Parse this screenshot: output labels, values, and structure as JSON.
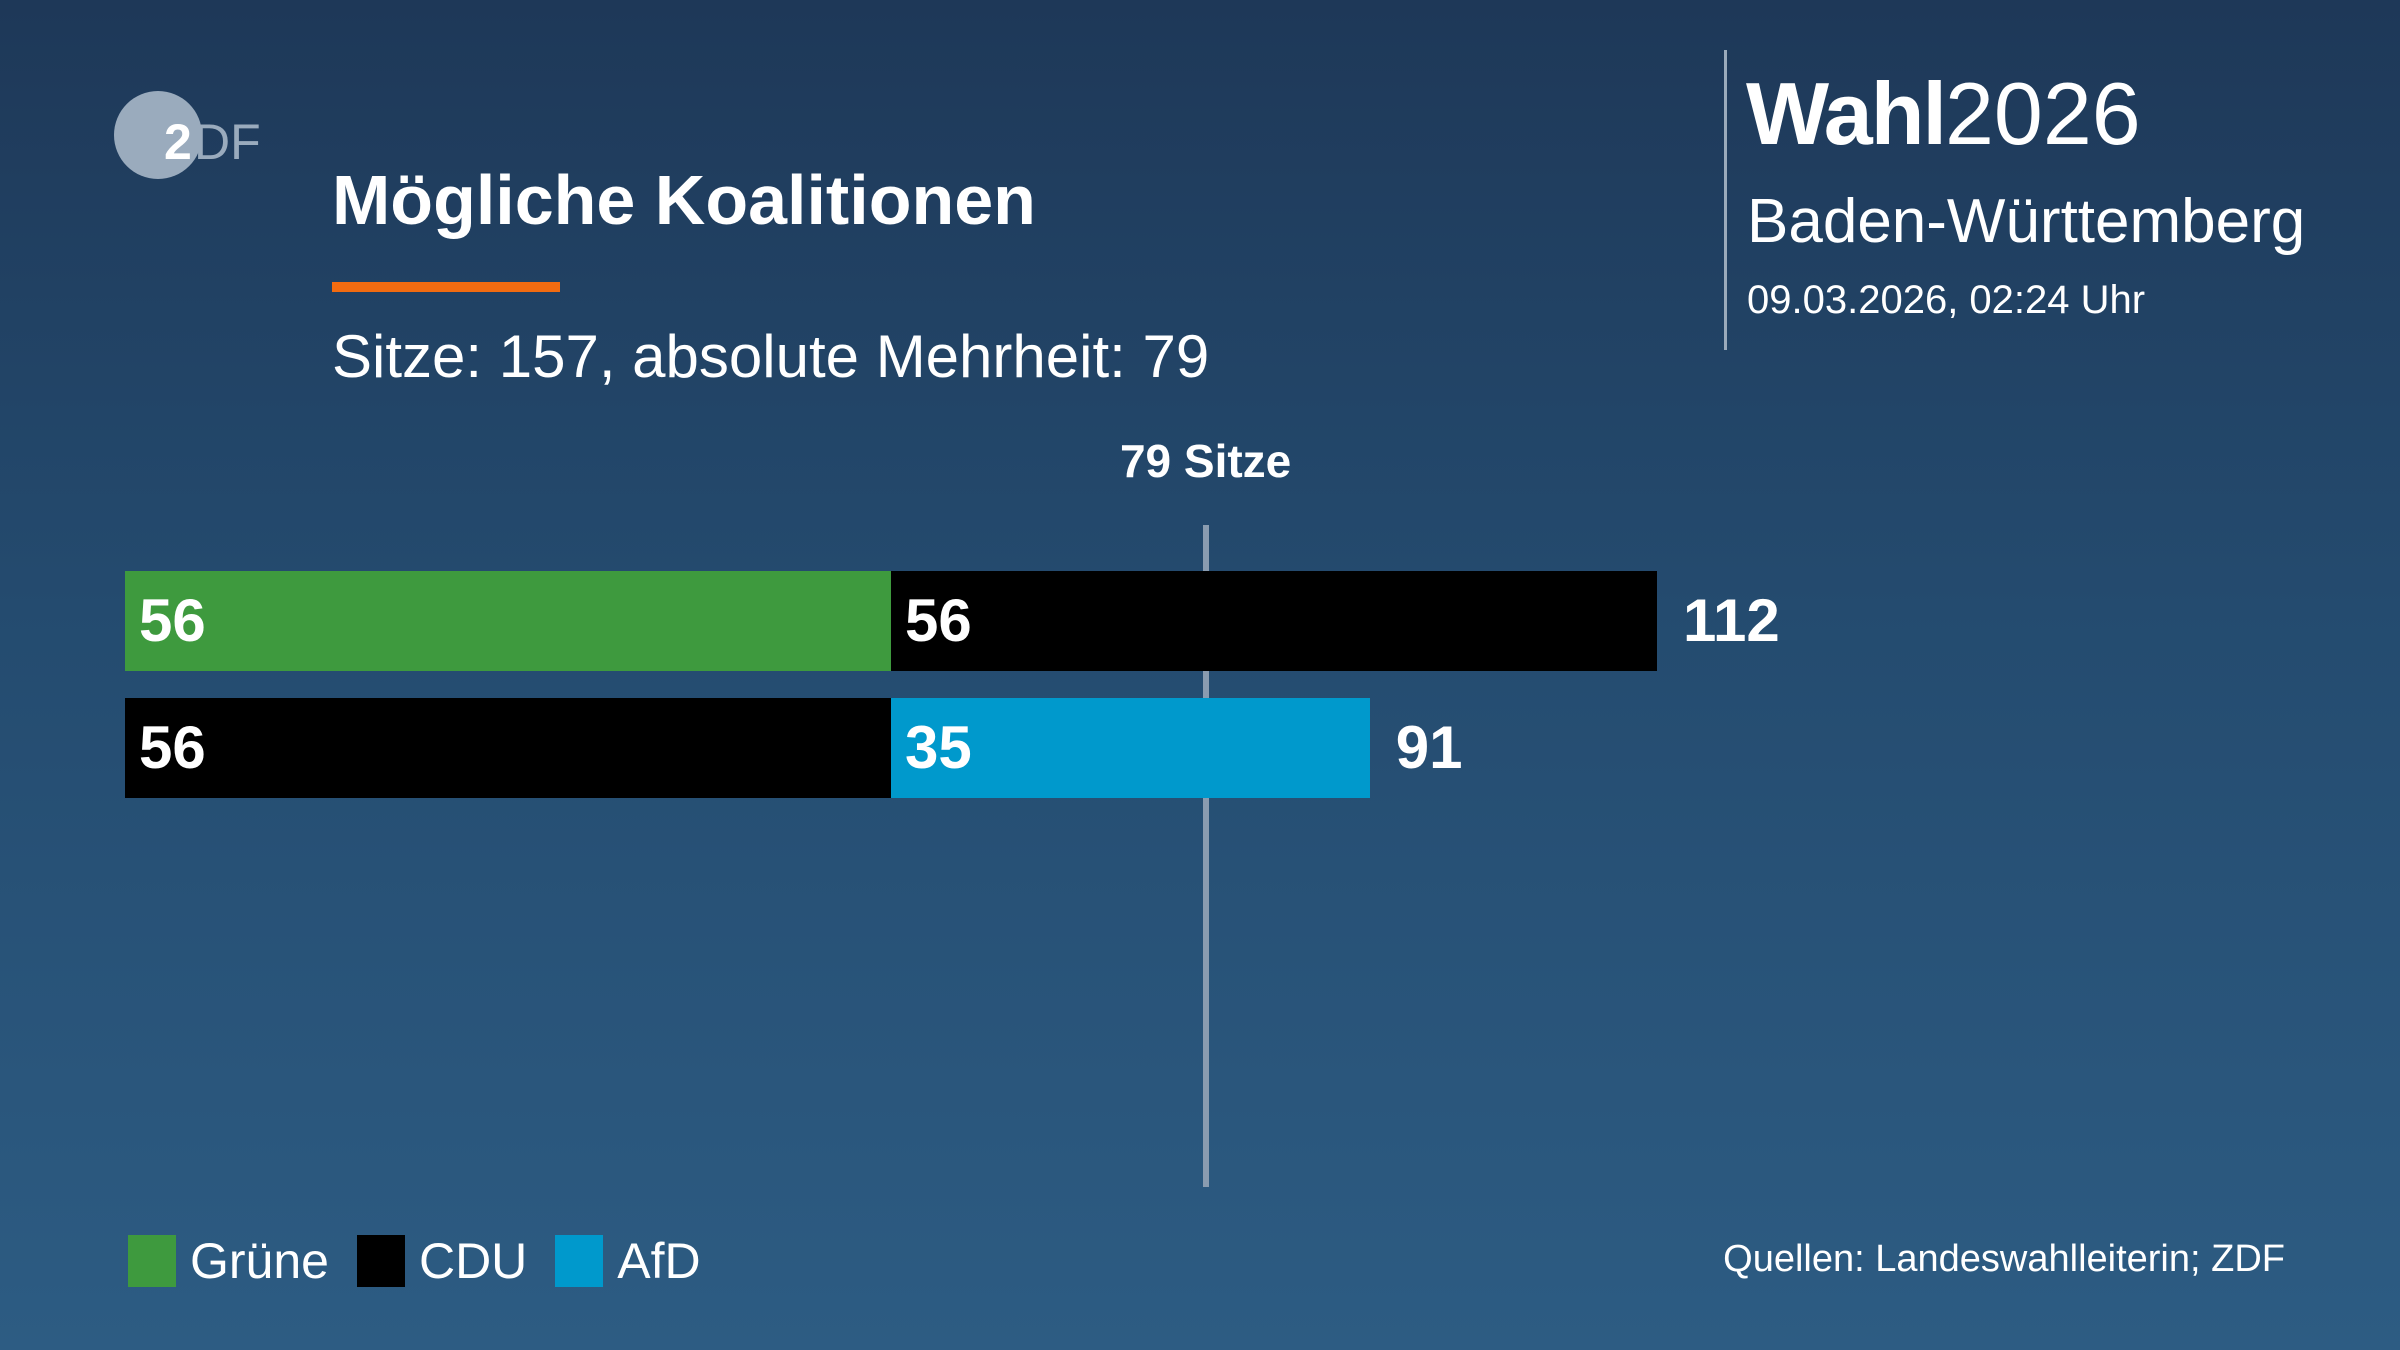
{
  "logo": {
    "text": "ZDF"
  },
  "header": {
    "title": "Mögliche Koalitionen",
    "subtitle": "Sitze: 157, absolute Mehrheit: 79",
    "accent_color": "#f26b10"
  },
  "branding": {
    "wahl_bold": "Wahl",
    "wahl_year": "2026",
    "region": "Baden-Württemberg",
    "timestamp": "09.03.2026, 02:24 Uhr"
  },
  "chart_data": {
    "type": "bar",
    "orientation": "horizontal",
    "stacked": true,
    "total_seats": 157,
    "majority": 79,
    "majority_label": "79 Sitze",
    "xlim": [
      0,
      157
    ],
    "grid": false,
    "legend_position": "bottom-left",
    "parties": [
      {
        "name": "Grüne",
        "color": "#3e9a3e"
      },
      {
        "name": "CDU",
        "color": "#000000"
      },
      {
        "name": "AfD",
        "color": "#0099cc"
      }
    ],
    "coalitions": [
      {
        "segments": [
          {
            "party": "Grüne",
            "value": 56
          },
          {
            "party": "CDU",
            "value": 56
          }
        ],
        "total": 112
      },
      {
        "segments": [
          {
            "party": "CDU",
            "value": 56
          },
          {
            "party": "AfD",
            "value": 35
          }
        ],
        "total": 91
      }
    ]
  },
  "footer": {
    "sources": "Quellen: Landeswahlleiterin; ZDF"
  }
}
